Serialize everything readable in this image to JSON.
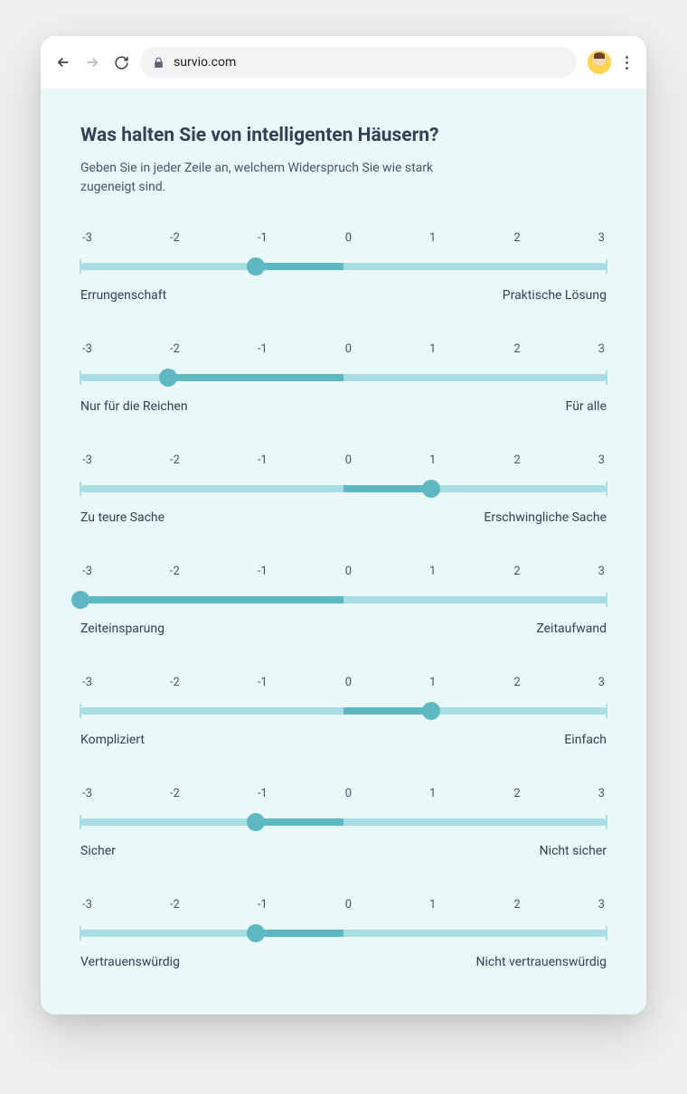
{
  "browser": {
    "url": "survio.com"
  },
  "colors": {
    "page_bg": "#eaf8fa",
    "track_light": "#a8dde4",
    "track_fill": "#5eb8c2",
    "thumb": "#5eb8c2",
    "tick": "#a8dde4",
    "text_primary": "#334155",
    "text_secondary": "#475569"
  },
  "question": {
    "title": "Was halten Sie von intelligenten Häusern?",
    "description": "Geben Sie in jeder Zeile an, welchem Widerspruch Sie wie stark zugeneigt sind."
  },
  "scale": {
    "min": -3,
    "max": 3,
    "labels": [
      "-3",
      "-2",
      "-1",
      "0",
      "1",
      "2",
      "3"
    ]
  },
  "rows": [
    {
      "left": "Errungenschaft",
      "right": "Praktische Lösung",
      "value": -1
    },
    {
      "left": "Nur für die Reichen",
      "right": "Für alle",
      "value": -2
    },
    {
      "left": "Zu teure Sache",
      "right": "Erschwingliche Sache",
      "value": 1
    },
    {
      "left": "Zeiteinsparung",
      "right": "Zeitaufwand",
      "value": -3
    },
    {
      "left": "Kompliziert",
      "right": "Einfach",
      "value": 1
    },
    {
      "left": "Sicher",
      "right": "Nicht sicher",
      "value": -1
    },
    {
      "left": "Vertrauenswürdig",
      "right": "Nicht vertrauenswürdig",
      "value": -1
    }
  ]
}
